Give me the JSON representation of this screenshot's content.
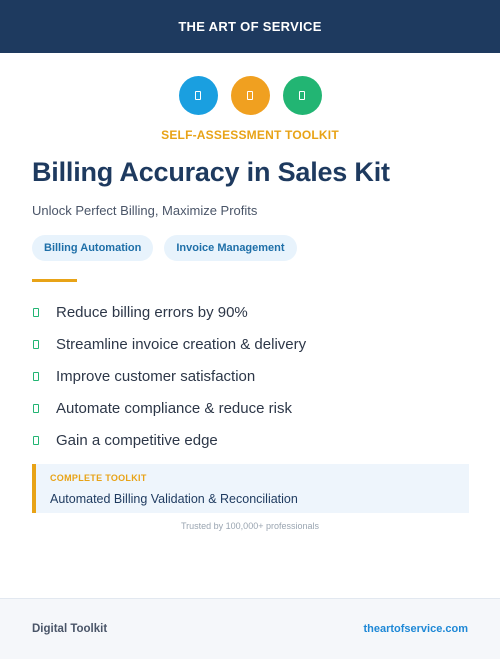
{
  "header": {
    "brand": "THE ART OF SERVICE",
    "background": "#1e3a5f"
  },
  "icons": [
    {
      "name": "document-icon",
      "color": "#1a9fe0"
    },
    {
      "name": "document-icon",
      "color": "#f0a020"
    },
    {
      "name": "document-icon",
      "color": "#22b573"
    }
  ],
  "kicker": "SELF-ASSESSMENT TOOLKIT",
  "title": "Billing Accuracy in Sales Kit",
  "subtitle": "Unlock Perfect Billing, Maximize Profits",
  "tags": [
    "Billing Automation",
    "Invoice Management"
  ],
  "benefits": [
    "Reduce billing errors by 90%",
    "Streamline invoice creation & delivery",
    "Improve customer satisfaction",
    "Automate compliance & reduce risk",
    "Gain a competitive edge"
  ],
  "callout": {
    "label": "COMPLETE TOOLKIT",
    "text": "Automated Billing Validation & Reconciliation"
  },
  "trust_line": "Trusted by 100,000+ professionals",
  "footer": {
    "left": "Digital Toolkit",
    "right": "theartofservice.com"
  },
  "colors": {
    "accent": "#e8a317",
    "navy": "#1e3a5f",
    "check": "#22b573",
    "link": "#1e88d6"
  }
}
